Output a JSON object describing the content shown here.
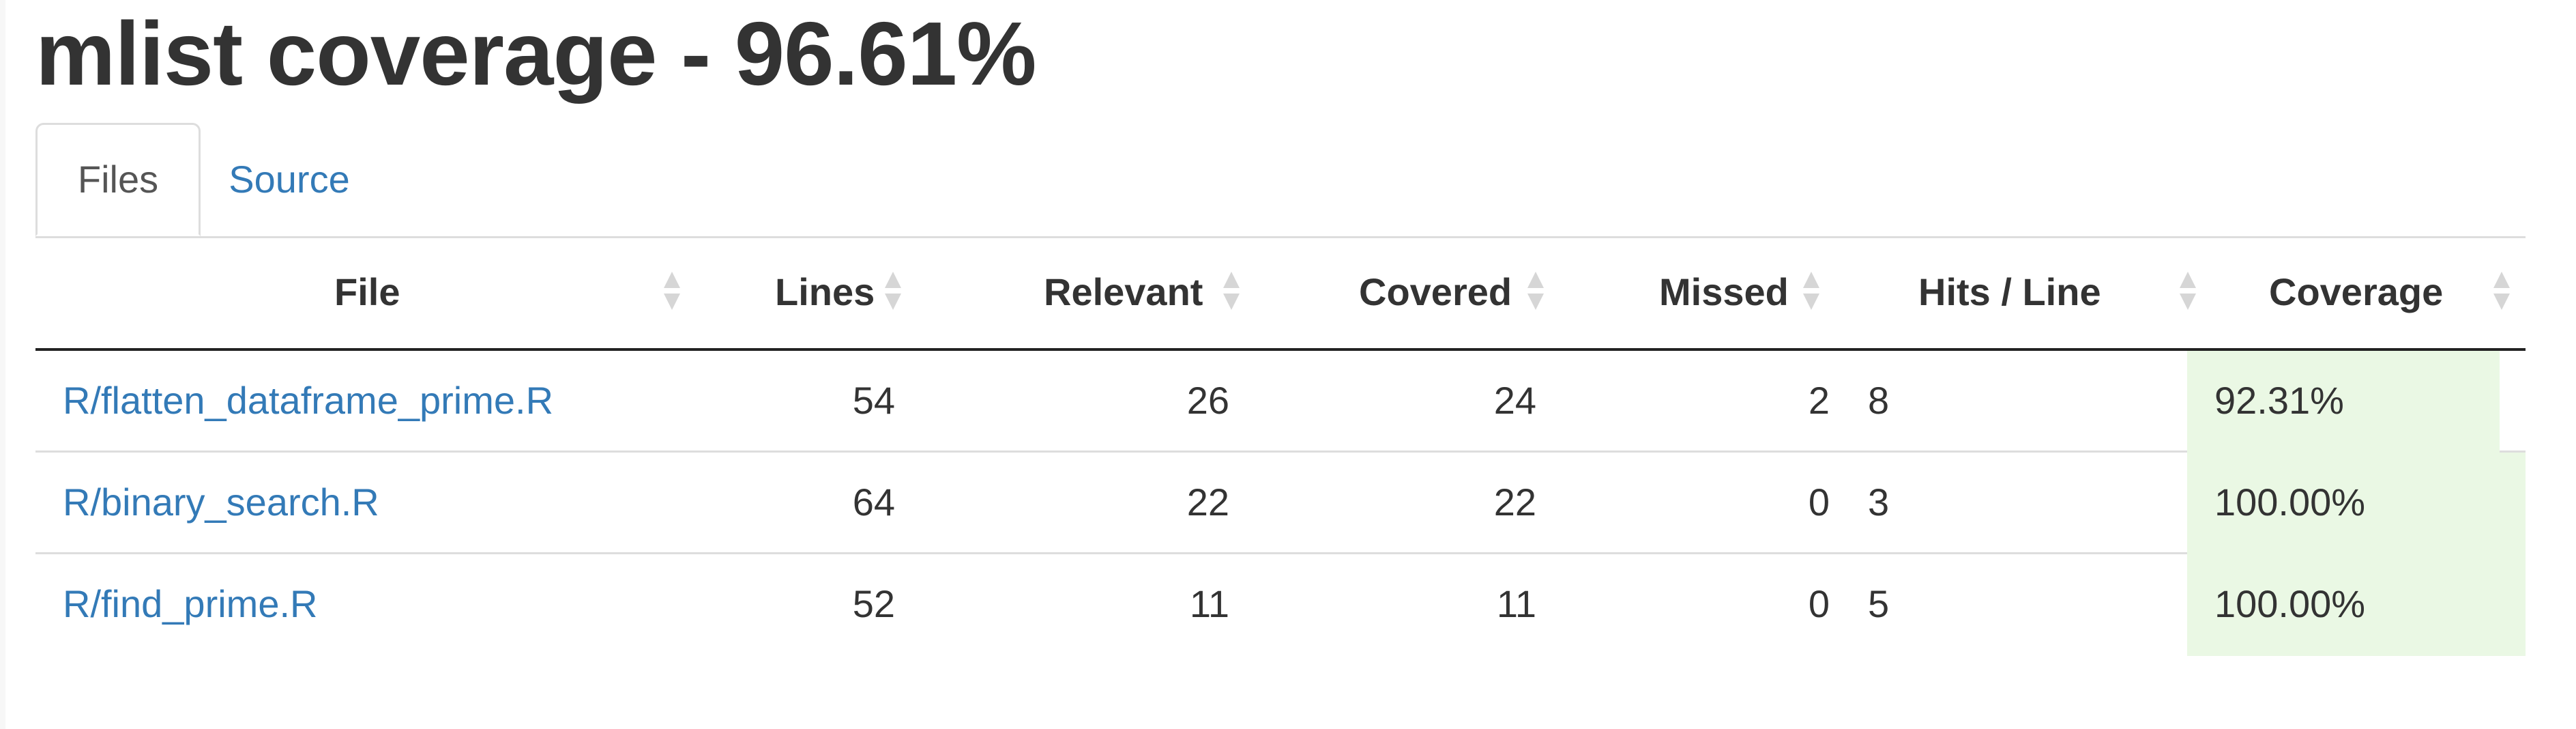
{
  "page": {
    "title": "mlist coverage - 96.61%"
  },
  "tabs": [
    {
      "label": "Files",
      "active": true
    },
    {
      "label": "Source",
      "active": false
    }
  ],
  "table": {
    "columns": [
      "File",
      "Lines",
      "Relevant",
      "Covered",
      "Missed",
      "Hits / Line",
      "Coverage"
    ],
    "rows": [
      {
        "file": "R/flatten_dataframe_prime.R",
        "lines": "54",
        "relevant": "26",
        "covered": "24",
        "missed": "2",
        "hits_per_line": "8",
        "coverage": "92.31%",
        "coverage_fraction": 0.9231
      },
      {
        "file": "R/binary_search.R",
        "lines": "64",
        "relevant": "22",
        "covered": "22",
        "missed": "0",
        "hits_per_line": "3",
        "coverage": "100.00%",
        "coverage_fraction": 1.0
      },
      {
        "file": "R/find_prime.R",
        "lines": "52",
        "relevant": "11",
        "covered": "11",
        "missed": "0",
        "hits_per_line": "5",
        "coverage": "100.00%",
        "coverage_fraction": 1.0
      }
    ]
  },
  "colors": {
    "link": "#337ab7",
    "coverage_bar": "#eaf8e4",
    "text": "#333333",
    "sort_icon": "#d6d6d6"
  },
  "icons": {
    "sort": "sort-both-icon"
  }
}
